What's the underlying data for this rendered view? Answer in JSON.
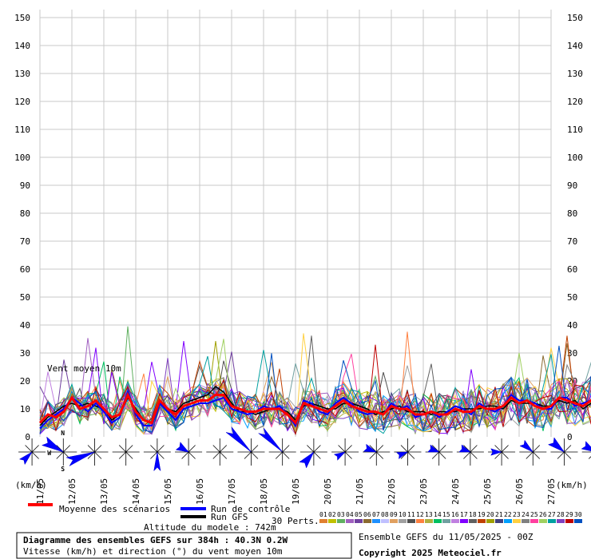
{
  "chart_data": {
    "type": "line",
    "ylim": [
      0,
      150
    ],
    "yticks": [
      0,
      10,
      20,
      30,
      40,
      50,
      60,
      70,
      80,
      90,
      100,
      110,
      120,
      130,
      140,
      150
    ],
    "date_labels": [
      "11/05",
      "12/05",
      "13/05",
      "14/05",
      "15/05",
      "16/05",
      "17/05",
      "18/05",
      "19/05",
      "20/05",
      "21/05",
      "22/05",
      "23/05",
      "24/05",
      "25/05",
      "26/05",
      "27/05"
    ],
    "unit_label": "(km/h)",
    "annotation": "Vent moyen 10m",
    "x_step_hours": 6,
    "x_max_hours": 384,
    "mean_series": {
      "name": "Moyenne des scénarios",
      "color": "#ff0000",
      "values": [
        5,
        8,
        7,
        9,
        14,
        10,
        11,
        13,
        10,
        7,
        8,
        15,
        9,
        6,
        5,
        13,
        10,
        8,
        11,
        12,
        13,
        13,
        15,
        15,
        11,
        10,
        9,
        9,
        10,
        10,
        10,
        8,
        5,
        12,
        11,
        10,
        9,
        11,
        13,
        11,
        10,
        9,
        9,
        8,
        11,
        10,
        10,
        8,
        8,
        9,
        8,
        8,
        10,
        9,
        9,
        11,
        10,
        10,
        11,
        14,
        12,
        13,
        11,
        10,
        11,
        14,
        13,
        12,
        11,
        13,
        14,
        12,
        11,
        10,
        11,
        10,
        10,
        13,
        15,
        13,
        11,
        10,
        11,
        12,
        13,
        12,
        11,
        10,
        11,
        13,
        15,
        14,
        12,
        11,
        10,
        9,
        10,
        12,
        11,
        10,
        11,
        14,
        12,
        11,
        11,
        12,
        14,
        11,
        10,
        9,
        10,
        11,
        15,
        14,
        12,
        10,
        12,
        12,
        11,
        12,
        13,
        13,
        12,
        11,
        12,
        13,
        10,
        9,
        10,
        12,
        11,
        10,
        12,
        12,
        14,
        12,
        11,
        12,
        12,
        11,
        13,
        12,
        13,
        11,
        10,
        11,
        13,
        12,
        11,
        10
      ]
    },
    "control_series": {
      "name": "Run de contrôle",
      "color": "#0000ff",
      "values": [
        3,
        6,
        8,
        10,
        14,
        12,
        9,
        12,
        9,
        5,
        7,
        16,
        8,
        4,
        4,
        12,
        9,
        6,
        10,
        11,
        12,
        12,
        13,
        14,
        10,
        9,
        8,
        9,
        11,
        10,
        11,
        8,
        4,
        13,
        12,
        9,
        8,
        12,
        14,
        12,
        9,
        8,
        9,
        8,
        12,
        10,
        11,
        7,
        8,
        9,
        7,
        9,
        11,
        10,
        8,
        12,
        10,
        9,
        11,
        15,
        13,
        13,
        12,
        10,
        10,
        14,
        14,
        11,
        12,
        13,
        16,
        11,
        10,
        9,
        12,
        10,
        10,
        14,
        14,
        13,
        12,
        9,
        10,
        13,
        14,
        11,
        10,
        9,
        12,
        14,
        15,
        14,
        11,
        10,
        9,
        8,
        10,
        13,
        10,
        9,
        11,
        13,
        12,
        10,
        11,
        12,
        15,
        10,
        9,
        8,
        10,
        12,
        17,
        13,
        11,
        9,
        12,
        13,
        10,
        11,
        14,
        12,
        11,
        11,
        12,
        14,
        9,
        8,
        9,
        13,
        10,
        9,
        13,
        11,
        13,
        12,
        10,
        11,
        13,
        11,
        14,
        12,
        12,
        10,
        9,
        12,
        14,
        11,
        10,
        9
      ]
    },
    "gfs_series": {
      "name": "Run GFS",
      "color": "#000000",
      "values": [
        4,
        7,
        9,
        11,
        12,
        11,
        12,
        11,
        10,
        6,
        8,
        14,
        10,
        6,
        5,
        12,
        10,
        9,
        12,
        13,
        14,
        15,
        18,
        16,
        12,
        9,
        9,
        8,
        9,
        10,
        10,
        9,
        6,
        11,
        12,
        11,
        10,
        10,
        12,
        12,
        11,
        10,
        8,
        9,
        10,
        11,
        9,
        9,
        9,
        8,
        9,
        9,
        9,
        10,
        10,
        10,
        11,
        11,
        10,
        13,
        12,
        12,
        12,
        11,
        11,
        13,
        12,
        13,
        10,
        12,
        13,
        13,
        12,
        11,
        10,
        11,
        11,
        12,
        14,
        14,
        12,
        11,
        10,
        11,
        12,
        13,
        12,
        11,
        10,
        12,
        14,
        15,
        13,
        12,
        11,
        10,
        9,
        11,
        12,
        11,
        10,
        13,
        13,
        12,
        10,
        11,
        13,
        12,
        11,
        10,
        9,
        10,
        14,
        15,
        13,
        11,
        11,
        12,
        12,
        13,
        12,
        14,
        13,
        12,
        11,
        12,
        11,
        10,
        11,
        11,
        12,
        11,
        11,
        13,
        13,
        13,
        12,
        11,
        11,
        12,
        12,
        13,
        14,
        12,
        11,
        10,
        12,
        13,
        12,
        11
      ]
    },
    "perturbations_label": "30 Perts.",
    "perturbation_numbers": [
      "01",
      "02",
      "03",
      "04",
      "05",
      "06",
      "07",
      "08",
      "09",
      "10",
      "11",
      "12",
      "13",
      "14",
      "15",
      "16",
      "17",
      "18",
      "19",
      "20",
      "21",
      "22",
      "23",
      "24",
      "25",
      "26",
      "27",
      "28",
      "29",
      "30"
    ],
    "perturbation_colors": [
      "#e08030",
      "#c0c000",
      "#60b060",
      "#a060c0",
      "#7040a0",
      "#8a6a30",
      "#1e90ff",
      "#c0c0ff",
      "#e0a060",
      "#a0a0a0",
      "#505050",
      "#ff8040",
      "#b0b040",
      "#00c060",
      "#70a0a0",
      "#c080e0",
      "#8000ff",
      "#606060",
      "#c04000",
      "#a0a000",
      "#404080",
      "#00a0ff",
      "#ffd040",
      "#808080",
      "#ff40a0",
      "#a0d060",
      "#00a0a0",
      "#8040c0",
      "#c00000",
      "#0050c0"
    ]
  },
  "legend": {
    "mean": "Moyenne des scénarios",
    "control": "Run de contrôle",
    "gfs": "Run GFS",
    "altitude": "Altitude du modele : 742m"
  },
  "info": {
    "title": "Diagramme des ensembles GEFS sur 384h : 40.3N 0.2W",
    "subtitle": "Vitesse (km/h) et direction (°) du vent moyen 10m",
    "run": "Ensemble GEFS du 11/05/2025 - 00Z",
    "copyright": "Copyright 2025 Meteociel.fr"
  },
  "compass": {
    "n": "N",
    "s": "S",
    "w": "W"
  },
  "wind_roses": [
    {
      "dir": 225,
      "spread": 30,
      "len": 18
    },
    {
      "dir": 300,
      "spread": 25,
      "len": 28
    },
    {
      "dir": 250,
      "spread": 18,
      "len": 36
    },
    {
      "dir": 0,
      "spread": 0,
      "len": 0
    },
    {
      "dir": 180,
      "spread": 20,
      "len": 24
    },
    {
      "dir": 300,
      "spread": 40,
      "len": 16
    },
    {
      "dir": 0,
      "spread": 0,
      "len": 0
    },
    {
      "dir": 315,
      "spread": 14,
      "len": 40
    },
    {
      "dir": 315,
      "spread": 14,
      "len": 38
    },
    {
      "dir": 220,
      "spread": 30,
      "len": 22
    },
    {
      "dir": 240,
      "spread": 35,
      "len": 14
    },
    {
      "dir": 290,
      "spread": 35,
      "len": 16
    },
    {
      "dir": 250,
      "spread": 35,
      "len": 14
    },
    {
      "dir": 290,
      "spread": 40,
      "len": 14
    },
    {
      "dir": 290,
      "spread": 40,
      "len": 14
    },
    {
      "dir": 270,
      "spread": 35,
      "len": 14
    },
    {
      "dir": 310,
      "spread": 30,
      "len": 18
    },
    {
      "dir": 310,
      "spread": 30,
      "len": 22
    },
    {
      "dir": 300,
      "spread": 35,
      "len": 18
    }
  ]
}
